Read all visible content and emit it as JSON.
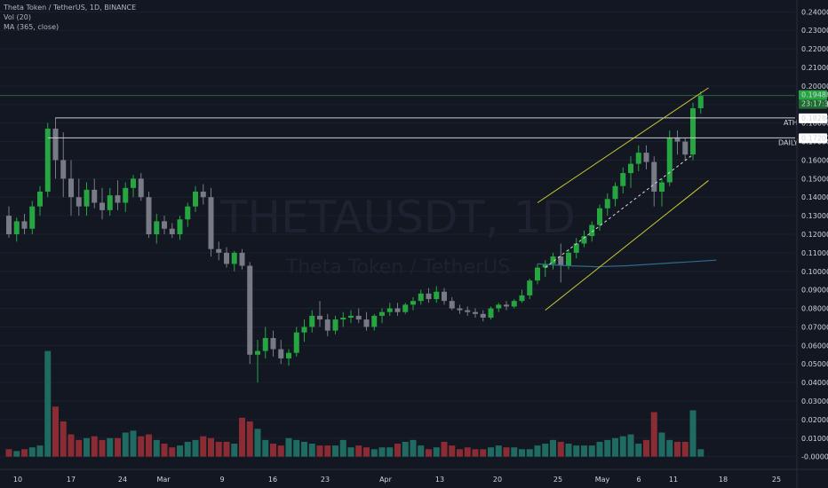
{
  "header": {
    "title": "Theta Token / TetherUS, 1D, BINANCE",
    "vol": "Vol (20)",
    "ma": "MA (365, close)"
  },
  "watermark": {
    "symbol": "THETAUSDT, 1D",
    "name": "Theta Token / TetherUS"
  },
  "price_axis": {
    "ticks": [
      "0.24000",
      "0.23000",
      "0.22000",
      "0.21000",
      "0.20000",
      "0.19000",
      "0.18000",
      "0.17000",
      "0.16000",
      "0.15000",
      "0.14000",
      "0.13000",
      "0.12000",
      "0.11000",
      "0.10000",
      "0.09000",
      "0.08000",
      "0.07000",
      "0.06000",
      "0.05000",
      "0.04000",
      "0.03000",
      "0.02000",
      "0.01000",
      "-0.00000"
    ],
    "last_price": "0.19488",
    "countdown": "23:17:32",
    "ath_value": "0.18280",
    "daily_value": "0.17201"
  },
  "time_axis": {
    "labels": [
      "10",
      "17",
      "24",
      "Mar",
      "9",
      "16",
      "23",
      "Apr",
      "13",
      "20",
      "25",
      "May",
      "6",
      "11",
      "18",
      "25"
    ]
  },
  "annotations": {
    "ath": "ATH",
    "daily": "DAILY"
  },
  "colors": {
    "background": "#131722",
    "up": "#26a641",
    "down": "#787b86",
    "vol_up": "#1f6b62",
    "vol_down": "#8b2b34",
    "ma": "#2e6a8a",
    "channel": "#c8c832",
    "grid": "#1c2030"
  },
  "chart_data": {
    "type": "candlestick",
    "interval": "1D",
    "x_start": "2020-02-09",
    "ohlc": [
      [
        0.13,
        0.135,
        0.118,
        0.12
      ],
      [
        0.12,
        0.129,
        0.116,
        0.127
      ],
      [
        0.127,
        0.131,
        0.12,
        0.123
      ],
      [
        0.123,
        0.138,
        0.12,
        0.135
      ],
      [
        0.135,
        0.146,
        0.13,
        0.143
      ],
      [
        0.143,
        0.18,
        0.14,
        0.177
      ],
      [
        0.177,
        0.183,
        0.15,
        0.16
      ],
      [
        0.16,
        0.175,
        0.14,
        0.15
      ],
      [
        0.15,
        0.16,
        0.13,
        0.14
      ],
      [
        0.14,
        0.15,
        0.13,
        0.135
      ],
      [
        0.135,
        0.148,
        0.13,
        0.144
      ],
      [
        0.144,
        0.15,
        0.134,
        0.137
      ],
      [
        0.137,
        0.145,
        0.128,
        0.133
      ],
      [
        0.133,
        0.145,
        0.13,
        0.141
      ],
      [
        0.141,
        0.149,
        0.133,
        0.137
      ],
      [
        0.137,
        0.148,
        0.132,
        0.145
      ],
      [
        0.145,
        0.152,
        0.14,
        0.15
      ],
      [
        0.15,
        0.153,
        0.138,
        0.14
      ],
      [
        0.14,
        0.143,
        0.118,
        0.12
      ],
      [
        0.12,
        0.131,
        0.115,
        0.127
      ],
      [
        0.127,
        0.13,
        0.12,
        0.123
      ],
      [
        0.123,
        0.126,
        0.118,
        0.12
      ],
      [
        0.12,
        0.13,
        0.117,
        0.128
      ],
      [
        0.128,
        0.137,
        0.124,
        0.135
      ],
      [
        0.135,
        0.146,
        0.132,
        0.143
      ],
      [
        0.143,
        0.147,
        0.136,
        0.14
      ],
      [
        0.14,
        0.145,
        0.108,
        0.112
      ],
      [
        0.112,
        0.116,
        0.106,
        0.11
      ],
      [
        0.11,
        0.113,
        0.102,
        0.104
      ],
      [
        0.104,
        0.111,
        0.1,
        0.11
      ],
      [
        0.11,
        0.112,
        0.101,
        0.103
      ],
      [
        0.103,
        0.105,
        0.05,
        0.055
      ],
      [
        0.055,
        0.063,
        0.04,
        0.057
      ],
      [
        0.057,
        0.07,
        0.053,
        0.064
      ],
      [
        0.064,
        0.068,
        0.054,
        0.058
      ],
      [
        0.058,
        0.063,
        0.05,
        0.053
      ],
      [
        0.053,
        0.058,
        0.049,
        0.056
      ],
      [
        0.056,
        0.07,
        0.054,
        0.067
      ],
      [
        0.067,
        0.074,
        0.062,
        0.07
      ],
      [
        0.07,
        0.079,
        0.067,
        0.076
      ],
      [
        0.076,
        0.084,
        0.07,
        0.074
      ],
      [
        0.074,
        0.077,
        0.065,
        0.068
      ],
      [
        0.068,
        0.076,
        0.066,
        0.074
      ],
      [
        0.074,
        0.078,
        0.07,
        0.075
      ],
      [
        0.075,
        0.079,
        0.072,
        0.076
      ],
      [
        0.076,
        0.08,
        0.072,
        0.074
      ],
      [
        0.074,
        0.078,
        0.068,
        0.07
      ],
      [
        0.07,
        0.077,
        0.068,
        0.076
      ],
      [
        0.076,
        0.08,
        0.072,
        0.078
      ],
      [
        0.078,
        0.083,
        0.076,
        0.08
      ],
      [
        0.08,
        0.083,
        0.076,
        0.078
      ],
      [
        0.078,
        0.083,
        0.077,
        0.082
      ],
      [
        0.082,
        0.086,
        0.079,
        0.084
      ],
      [
        0.084,
        0.09,
        0.082,
        0.088
      ],
      [
        0.088,
        0.091,
        0.083,
        0.085
      ],
      [
        0.085,
        0.092,
        0.083,
        0.089
      ],
      [
        0.089,
        0.091,
        0.082,
        0.084
      ],
      [
        0.084,
        0.086,
        0.079,
        0.08
      ],
      [
        0.08,
        0.082,
        0.077,
        0.079
      ],
      [
        0.079,
        0.081,
        0.076,
        0.078
      ],
      [
        0.078,
        0.08,
        0.075,
        0.077
      ],
      [
        0.077,
        0.079,
        0.073,
        0.075
      ],
      [
        0.075,
        0.081,
        0.074,
        0.08
      ],
      [
        0.08,
        0.083,
        0.078,
        0.082
      ],
      [
        0.082,
        0.084,
        0.079,
        0.081
      ],
      [
        0.081,
        0.085,
        0.08,
        0.084
      ],
      [
        0.084,
        0.09,
        0.083,
        0.087
      ],
      [
        0.087,
        0.096,
        0.085,
        0.095
      ],
      [
        0.095,
        0.104,
        0.093,
        0.102
      ],
      [
        0.102,
        0.106,
        0.097,
        0.104
      ],
      [
        0.104,
        0.11,
        0.101,
        0.108
      ],
      [
        0.108,
        0.115,
        0.094,
        0.103
      ],
      [
        0.103,
        0.112,
        0.101,
        0.11
      ],
      [
        0.11,
        0.118,
        0.107,
        0.115
      ],
      [
        0.115,
        0.122,
        0.113,
        0.119
      ],
      [
        0.119,
        0.127,
        0.116,
        0.125
      ],
      [
        0.125,
        0.136,
        0.122,
        0.134
      ],
      [
        0.134,
        0.142,
        0.13,
        0.139
      ],
      [
        0.139,
        0.148,
        0.135,
        0.146
      ],
      [
        0.146,
        0.156,
        0.142,
        0.153
      ],
      [
        0.153,
        0.162,
        0.145,
        0.158
      ],
      [
        0.158,
        0.168,
        0.154,
        0.164
      ],
      [
        0.164,
        0.168,
        0.155,
        0.159
      ],
      [
        0.159,
        0.162,
        0.135,
        0.143
      ],
      [
        0.143,
        0.15,
        0.135,
        0.148
      ],
      [
        0.148,
        0.176,
        0.146,
        0.172
      ],
      [
        0.172,
        0.176,
        0.163,
        0.17
      ],
      [
        0.17,
        0.172,
        0.16,
        0.163
      ],
      [
        0.163,
        0.191,
        0.16,
        0.188
      ],
      [
        0.188,
        0.197,
        0.185,
        0.195
      ]
    ],
    "volume": [
      0.004,
      0.003,
      0.004,
      0.005,
      0.006,
      0.057,
      0.027,
      0.019,
      0.012,
      0.009,
      0.01,
      0.011,
      0.009,
      0.01,
      0.01,
      0.013,
      0.014,
      0.011,
      0.012,
      0.009,
      0.007,
      0.005,
      0.006,
      0.008,
      0.009,
      0.011,
      0.01,
      0.008,
      0.008,
      0.007,
      0.021,
      0.019,
      0.015,
      0.009,
      0.007,
      0.006,
      0.01,
      0.009,
      0.008,
      0.007,
      0.006,
      0.006,
      0.006,
      0.009,
      0.005,
      0.006,
      0.005,
      0.004,
      0.005,
      0.005,
      0.007,
      0.008,
      0.009,
      0.006,
      0.004,
      0.005,
      0.008,
      0.006,
      0.004,
      0.005,
      0.004,
      0.004,
      0.005,
      0.006,
      0.005,
      0.005,
      0.004,
      0.004,
      0.006,
      0.007,
      0.009,
      0.008,
      0.007,
      0.006,
      0.006,
      0.006,
      0.008,
      0.009,
      0.01,
      0.011,
      0.012,
      0.007,
      0.009,
      0.024,
      0.013,
      0.009,
      0.008,
      0.008,
      0.025,
      0.004
    ],
    "ma365": [
      0.104,
      0.103,
      0.1025,
      0.103,
      0.104,
      0.105,
      0.106
    ],
    "ylim": [
      -0.004,
      0.244
    ],
    "ath_level": 0.1828,
    "daily_level": 0.17201,
    "last_price": 0.19488
  }
}
